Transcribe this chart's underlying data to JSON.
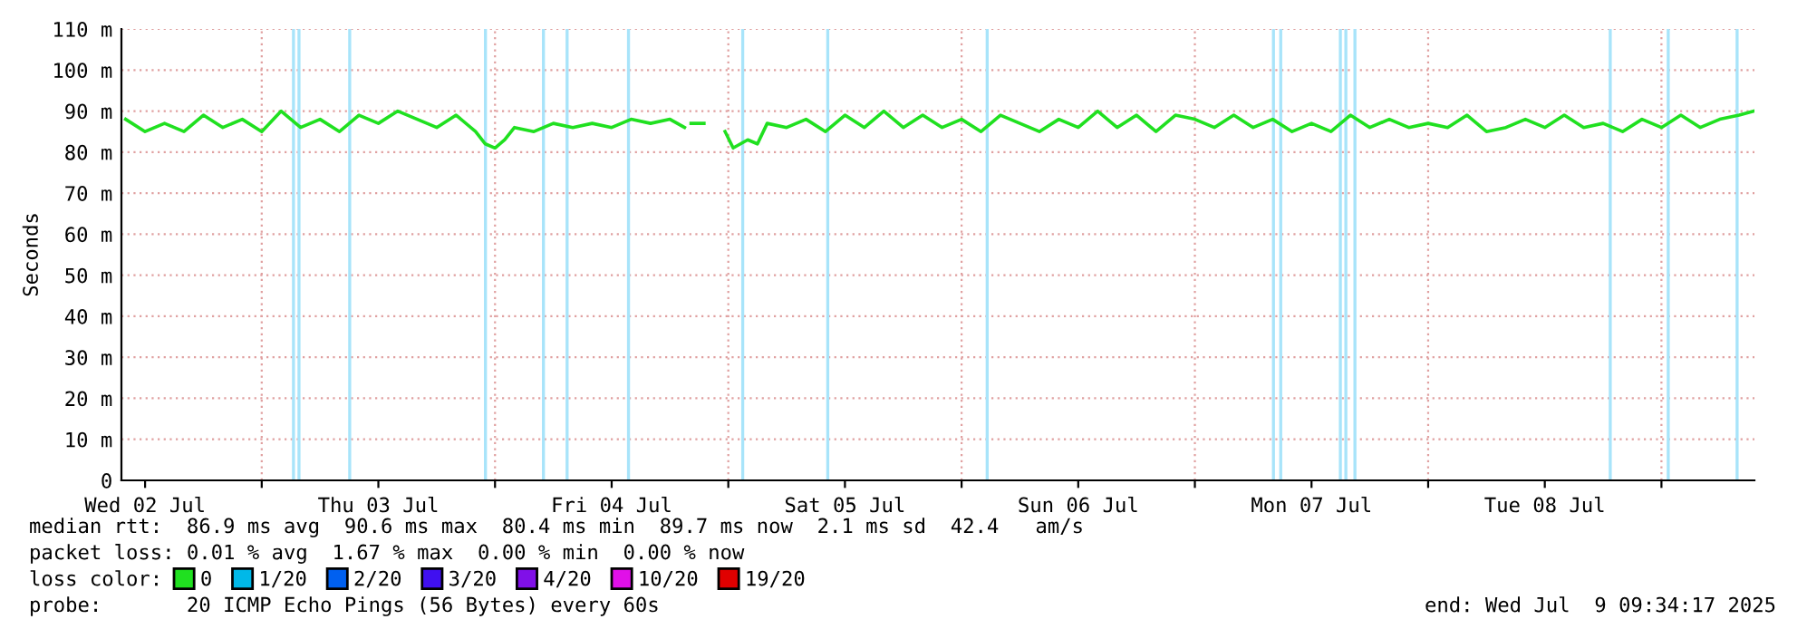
{
  "chart_data": {
    "type": "line",
    "ylabel": "Seconds",
    "xlim": [
      "2025-07-02T09:34",
      "2025-07-09T09:34"
    ],
    "xticks": [
      {
        "value": "2025-07-02T12:00",
        "label": "Wed 02 Jul"
      },
      {
        "value": "2025-07-03T00:00",
        "label": null
      },
      {
        "value": "2025-07-03T12:00",
        "label": "Thu 03 Jul"
      },
      {
        "value": "2025-07-04T00:00",
        "label": null
      },
      {
        "value": "2025-07-04T12:00",
        "label": "Fri 04 Jul"
      },
      {
        "value": "2025-07-05T00:00",
        "label": null
      },
      {
        "value": "2025-07-05T12:00",
        "label": "Sat 05 Jul"
      },
      {
        "value": "2025-07-06T00:00",
        "label": null
      },
      {
        "value": "2025-07-06T12:00",
        "label": "Sun 06 Jul"
      },
      {
        "value": "2025-07-07T00:00",
        "label": null
      },
      {
        "value": "2025-07-07T12:00",
        "label": "Mon 07 Jul"
      },
      {
        "value": "2025-07-08T00:00",
        "label": null
      },
      {
        "value": "2025-07-08T12:00",
        "label": "Tue 08 Jul"
      },
      {
        "value": "2025-07-09T00:00",
        "label": null
      }
    ],
    "ylim": [
      0,
      110
    ],
    "yticks": [
      0,
      {
        "value": 10,
        "label": "10 m"
      },
      {
        "value": 20,
        "label": "20 m"
      },
      {
        "value": 30,
        "label": "30 m"
      },
      {
        "value": 40,
        "label": "40 m"
      },
      {
        "value": 50,
        "label": "50 m"
      },
      {
        "value": 60,
        "label": "60 m"
      },
      {
        "value": 70,
        "label": "70 m"
      },
      {
        "value": 80,
        "label": "80 m"
      },
      {
        "value": 90,
        "label": "90 m"
      },
      {
        "value": 100,
        "label": "100 m"
      },
      {
        "value": 110,
        "label": "110 m"
      }
    ],
    "grid": true,
    "legend": "bottom",
    "legend_title": "loss color:",
    "line_style": "solid",
    "series": [
      {
        "name": "0",
        "color": "#20e020",
        "x": [
          "2025-07-02T10:00",
          "2025-07-02T12:00",
          "2025-07-02T14:00",
          "2025-07-02T16:00",
          "2025-07-02T18:00",
          "2025-07-02T20:00",
          "2025-07-02T22:00",
          "2025-07-03T00:00",
          "2025-07-03T02:00",
          "2025-07-03T04:00",
          "2025-07-03T06:00",
          "2025-07-03T08:00",
          "2025-07-03T10:00",
          "2025-07-03T12:00",
          "2025-07-03T14:00",
          "2025-07-03T16:00",
          "2025-07-03T18:00",
          "2025-07-03T20:00",
          "2025-07-03T22:00",
          "2025-07-03T23:00",
          "2025-07-04T00:00",
          "2025-07-04T01:00",
          "2025-07-04T02:00",
          "2025-07-04T04:00",
          "2025-07-04T06:00",
          "2025-07-04T08:00",
          "2025-07-04T10:00",
          "2025-07-04T12:00",
          "2025-07-04T14:00",
          "2025-07-04T16:00",
          "2025-07-04T18:00",
          "2025-07-04T19:30",
          "2025-07-04T19:50",
          "2025-07-04T20:10",
          "2025-07-04T21:30",
          "2025-07-04T21:50",
          "2025-07-04T23:40",
          "2025-07-05T00:30",
          "2025-07-05T02:00",
          "2025-07-05T03:00",
          "2025-07-05T04:00",
          "2025-07-05T06:00",
          "2025-07-05T08:00",
          "2025-07-05T10:00",
          "2025-07-05T12:00",
          "2025-07-05T14:00",
          "2025-07-05T16:00",
          "2025-07-05T18:00",
          "2025-07-05T20:00",
          "2025-07-05T22:00",
          "2025-07-06T00:00",
          "2025-07-06T02:00",
          "2025-07-06T04:00",
          "2025-07-06T06:00",
          "2025-07-06T08:00",
          "2025-07-06T10:00",
          "2025-07-06T12:00",
          "2025-07-06T14:00",
          "2025-07-06T16:00",
          "2025-07-06T18:00",
          "2025-07-06T20:00",
          "2025-07-06T22:00",
          "2025-07-07T00:00",
          "2025-07-07T02:00",
          "2025-07-07T04:00",
          "2025-07-07T06:00",
          "2025-07-07T08:00",
          "2025-07-07T10:00",
          "2025-07-07T12:00",
          "2025-07-07T14:00",
          "2025-07-07T16:00",
          "2025-07-07T18:00",
          "2025-07-07T20:00",
          "2025-07-07T22:00",
          "2025-07-08T00:00",
          "2025-07-08T02:00",
          "2025-07-08T04:00",
          "2025-07-08T06:00",
          "2025-07-08T08:00",
          "2025-07-08T10:00",
          "2025-07-08T12:00",
          "2025-07-08T14:00",
          "2025-07-08T16:00",
          "2025-07-08T18:00",
          "2025-07-08T20:00",
          "2025-07-08T22:00",
          "2025-07-09T00:00",
          "2025-07-09T02:00",
          "2025-07-09T04:00",
          "2025-07-09T06:00",
          "2025-07-09T08:00",
          "2025-07-09T09:30"
        ],
        "values": [
          88,
          85,
          87,
          85,
          89,
          86,
          88,
          85,
          90,
          86,
          88,
          85,
          89,
          87,
          90,
          88,
          86,
          89,
          85,
          82,
          81,
          83,
          86,
          85,
          87,
          86,
          87,
          86,
          88,
          87,
          88,
          86,
          null,
          87,
          87,
          null,
          85,
          81,
          83,
          82,
          87,
          86,
          88,
          85,
          89,
          86,
          90,
          86,
          89,
          86,
          88,
          85,
          89,
          87,
          85,
          88,
          86,
          90,
          86,
          89,
          85,
          89,
          88,
          86,
          89,
          86,
          88,
          85,
          87,
          85,
          89,
          86,
          88,
          86,
          87,
          86,
          89,
          85,
          86,
          88,
          86,
          89,
          86,
          87,
          85,
          88,
          86,
          89,
          86,
          88,
          89,
          90
        ]
      },
      {
        "name": "1/20",
        "color": "#00b8e8"
      },
      {
        "name": "2/20",
        "color": "#0060f0"
      },
      {
        "name": "3/20",
        "color": "#4010f0"
      },
      {
        "name": "4/20",
        "color": "#8010e8"
      },
      {
        "name": "10/20",
        "color": "#e010e8"
      },
      {
        "name": "19/20",
        "color": "#e00000"
      }
    ],
    "ref_lines": [
      {
        "axis": "x",
        "value": "2025-07-03T03:16",
        "color": "#a8e4fa"
      },
      {
        "axis": "x",
        "value": "2025-07-03T03:50",
        "color": "#a8e4fa"
      },
      {
        "axis": "x",
        "value": "2025-07-03T09:03",
        "color": "#a8e4fa"
      },
      {
        "axis": "x",
        "value": "2025-07-03T23:01",
        "color": "#a8e4fa"
      },
      {
        "axis": "x",
        "value": "2025-07-04T04:59",
        "color": "#a8e4fa"
      },
      {
        "axis": "x",
        "value": "2025-07-04T07:25",
        "color": "#a8e4fa"
      },
      {
        "axis": "x",
        "value": "2025-07-04T13:44",
        "color": "#a8e4fa"
      },
      {
        "axis": "x",
        "value": "2025-07-05T01:29",
        "color": "#a8e4fa"
      },
      {
        "axis": "x",
        "value": "2025-07-05T10:14",
        "color": "#a8e4fa"
      },
      {
        "axis": "x",
        "value": "2025-07-06T02:38",
        "color": "#a8e4fa"
      },
      {
        "axis": "x",
        "value": "2025-07-07T08:05",
        "color": "#a8e4fa"
      },
      {
        "axis": "x",
        "value": "2025-07-07T08:50",
        "color": "#a8e4fa"
      },
      {
        "axis": "x",
        "value": "2025-07-07T14:58",
        "color": "#a8e4fa"
      },
      {
        "axis": "x",
        "value": "2025-07-07T15:32",
        "color": "#a8e4fa"
      },
      {
        "axis": "x",
        "value": "2025-07-07T16:28",
        "color": "#a8e4fa"
      },
      {
        "axis": "x",
        "value": "2025-07-08T18:44",
        "color": "#a8e4fa"
      },
      {
        "axis": "x",
        "value": "2025-07-09T00:42",
        "color": "#a8e4fa"
      },
      {
        "axis": "x",
        "value": "2025-07-09T07:47",
        "color": "#a8e4fa"
      }
    ],
    "annotations": [
      "median rtt:  86.9 ms avg  90.6 ms max  80.4 ms min  89.7 ms now  2.1 ms sd  42.4   am/s",
      "packet loss: 0.01 % avg  1.67 % max  0.00 % min  0.00 % now",
      "probe:       20 ICMP Echo Pings (56 Bytes) every 60s",
      "end: Wed Jul  9 09:34:17 2025"
    ]
  }
}
